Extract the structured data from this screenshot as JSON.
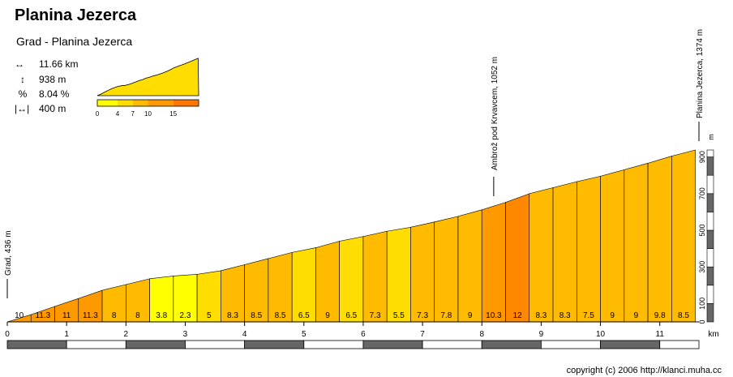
{
  "header": {
    "title": "Planina Jezerca",
    "subtitle": "Grad - Planina Jezerca"
  },
  "stats": [
    {
      "icon": "distance-arrows-icon",
      "value": "11.66 km"
    },
    {
      "icon": "elevation-arrows-icon",
      "value": "938 m"
    },
    {
      "icon": "percent-icon",
      "symbol": "%",
      "value": "8.04 %"
    },
    {
      "icon": "segment-length-icon",
      "value": "400 m"
    }
  ],
  "mini_scale": {
    "ticks": [
      "0",
      "4",
      "7",
      "10",
      "15"
    ],
    "colors": [
      "#ffff00",
      "#ffdd00",
      "#ffbb00",
      "#ff9900",
      "#ff7700"
    ]
  },
  "chart_data": {
    "type": "area",
    "xlabel": "km",
    "ylabel": "m",
    "x_ticks": [
      "0",
      "1",
      "2",
      "3",
      "4",
      "5",
      "6",
      "7",
      "8",
      "9",
      "10",
      "11"
    ],
    "y_ticks": [
      "0",
      "100",
      "300",
      "500",
      "700",
      "900"
    ],
    "xlim": [
      0,
      11.66
    ],
    "ylim": [
      0,
      938
    ],
    "segment_length_km": 0.4,
    "segment_grades": [
      10,
      11.3,
      11,
      11.3,
      8,
      8,
      3.8,
      2.3,
      5,
      8.3,
      8.5,
      8.5,
      6.5,
      9,
      6.5,
      7.3,
      5.5,
      7.3,
      7.8,
      9,
      10.3,
      12,
      8.3,
      8.3,
      7.5,
      9,
      9,
      9.8,
      8.5
    ],
    "segment_labels": [
      "10",
      "11.3",
      "11",
      "11.3",
      "8",
      "8",
      "3.8",
      "2.3",
      "5",
      "8.3",
      "8.5",
      "8.5",
      "6.5",
      "9",
      "6.5",
      "7.3",
      "5.5",
      "7.3",
      "7.8",
      "9",
      "10.3",
      "12",
      "8.3",
      "8.3",
      "7.5",
      "9",
      "9",
      "9.8",
      "8.5"
    ],
    "annotations": [
      {
        "label": "Grad, 436 m",
        "km": 0
      },
      {
        "label": "Ambrož pod Krvavcem, 1052 m",
        "km": 8.2
      },
      {
        "label": "Planina Jezerca, 1374 m",
        "km": 11.66
      }
    ],
    "grade_colors": [
      {
        "min": 0,
        "color": "#ffff00"
      },
      {
        "min": 4,
        "color": "#ffdd00"
      },
      {
        "min": 7,
        "color": "#ffbb00"
      },
      {
        "min": 10,
        "color": "#ff9900"
      },
      {
        "min": 12,
        "color": "#ff8800"
      }
    ]
  },
  "footer": {
    "copyright": "copyright (c) 2006 http://klanci.muha.cc"
  }
}
